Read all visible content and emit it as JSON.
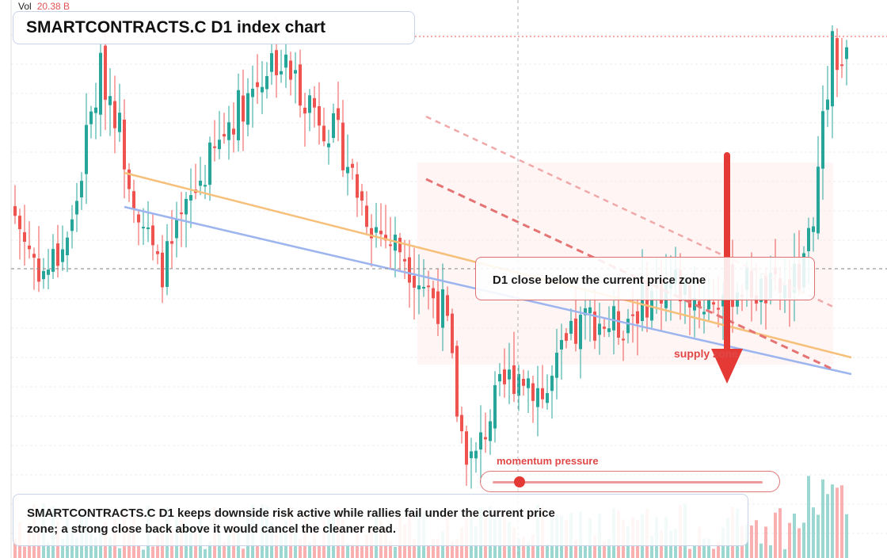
{
  "header": {
    "vol_label": "Vol",
    "vol_value": "20.38 B",
    "title": "SMARTCONTRACTS.C D1 index chart"
  },
  "annotations": {
    "zone_label": "D1 close below the current price zone",
    "supply_label": "supply zone",
    "momentum_label": "momentum pressure",
    "momentum_level": 0.1,
    "note": "SMARTCONTRACTS.C D1 keeps downside risk active while rallies fail under the current price zone; a strong close back above it would cancel the cleaner read."
  },
  "colors": {
    "bull": "#26a69a",
    "bear": "#ef5350",
    "trend_orange": "#f7c07a",
    "trend_blue": "#9db5ef",
    "arrow": "#e53935"
  },
  "chart_data": {
    "type": "candlestick",
    "title": "SMARTCONTRACTS.C D1 index chart",
    "timeframe": "D1",
    "volume_readout": "20.38 B",
    "axes_visible": false,
    "grid": true,
    "series": [
      {
        "name": "price",
        "close_path": [
          62,
          55,
          50,
          54,
          60,
          78,
          92,
          84,
          70,
          60,
          50,
          55,
          63,
          70,
          75,
          82,
          86,
          90,
          95,
          92,
          88,
          84,
          80,
          75,
          66,
          60,
          57,
          55,
          50,
          46,
          42,
          18,
          10,
          20,
          26,
          30,
          28,
          24,
          32,
          37,
          41,
          40,
          39,
          42,
          45,
          47,
          48,
          46,
          44,
          45,
          47,
          48,
          46,
          46,
          47,
          50,
          70,
          97,
          93
        ]
      },
      {
        "name": "volume",
        "pattern": "low throughout, spike at latest sessions"
      }
    ]
  }
}
